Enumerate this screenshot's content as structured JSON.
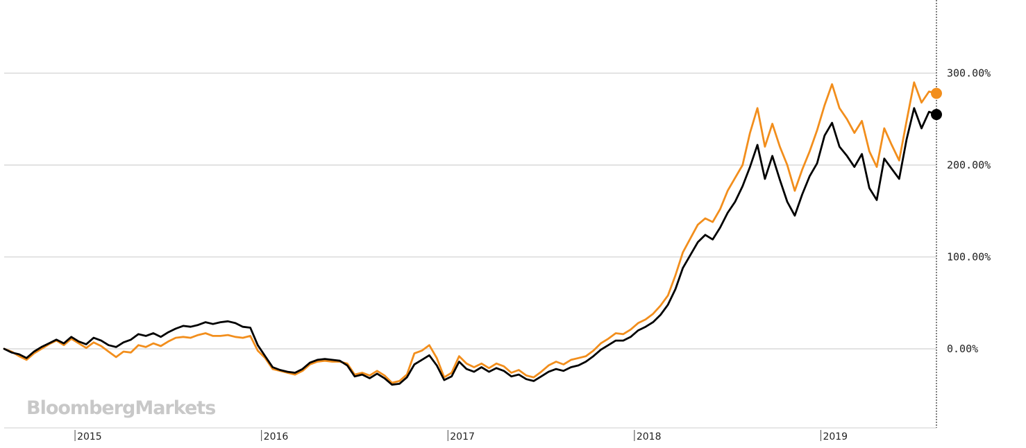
{
  "watermark": "BloombergMarkets",
  "chart_data": {
    "type": "line",
    "y_unit": "%",
    "ylim": [
      -85,
      370
    ],
    "xlim": [
      2014.62,
      2019.62
    ],
    "y_ticks": [
      {
        "value": 0,
        "label": "0.00%"
      },
      {
        "value": 100,
        "label": "100.00%"
      },
      {
        "value": 200,
        "label": "200.00%"
      },
      {
        "value": 300,
        "label": "300.00%"
      }
    ],
    "x_ticks": [
      {
        "value": 2015,
        "label": "2015"
      },
      {
        "value": 2016,
        "label": "2016"
      },
      {
        "value": 2017,
        "label": "2017"
      },
      {
        "value": 2018,
        "label": "2018"
      },
      {
        "value": 2019,
        "label": "2019"
      }
    ],
    "grid": true,
    "colors": {
      "orange": "#f28e1c",
      "black": "#000000",
      "grid": "#d9d9d9"
    },
    "series": [
      {
        "color": "#f28e1c",
        "points": [
          [
            2014.62,
            0
          ],
          [
            2014.66,
            -3
          ],
          [
            2014.7,
            -8
          ],
          [
            2014.74,
            -12
          ],
          [
            2014.78,
            -5
          ],
          [
            2014.82,
            0
          ],
          [
            2014.86,
            5
          ],
          [
            2014.9,
            9
          ],
          [
            2014.94,
            4
          ],
          [
            2014.98,
            11
          ],
          [
            2015.02,
            6
          ],
          [
            2015.06,
            1
          ],
          [
            2015.1,
            7
          ],
          [
            2015.14,
            3
          ],
          [
            2015.18,
            -3
          ],
          [
            2015.22,
            -9
          ],
          [
            2015.26,
            -3
          ],
          [
            2015.3,
            -4
          ],
          [
            2015.34,
            4
          ],
          [
            2015.38,
            2
          ],
          [
            2015.42,
            6
          ],
          [
            2015.46,
            3
          ],
          [
            2015.5,
            8
          ],
          [
            2015.54,
            12
          ],
          [
            2015.58,
            13
          ],
          [
            2015.62,
            12
          ],
          [
            2015.66,
            15
          ],
          [
            2015.7,
            17
          ],
          [
            2015.74,
            14
          ],
          [
            2015.78,
            14
          ],
          [
            2015.82,
            15
          ],
          [
            2015.86,
            13
          ],
          [
            2015.9,
            12
          ],
          [
            2015.94,
            14
          ],
          [
            2015.98,
            -2
          ],
          [
            2016.02,
            -10
          ],
          [
            2016.06,
            -22
          ],
          [
            2016.1,
            -24
          ],
          [
            2016.14,
            -26
          ],
          [
            2016.18,
            -28
          ],
          [
            2016.22,
            -24
          ],
          [
            2016.26,
            -17
          ],
          [
            2016.3,
            -14
          ],
          [
            2016.34,
            -13
          ],
          [
            2016.38,
            -14
          ],
          [
            2016.42,
            -14
          ],
          [
            2016.46,
            -16
          ],
          [
            2016.5,
            -28
          ],
          [
            2016.54,
            -26
          ],
          [
            2016.58,
            -29
          ],
          [
            2016.62,
            -24
          ],
          [
            2016.66,
            -29
          ],
          [
            2016.7,
            -37
          ],
          [
            2016.74,
            -35
          ],
          [
            2016.78,
            -28
          ],
          [
            2016.82,
            -5
          ],
          [
            2016.86,
            -2
          ],
          [
            2016.9,
            4
          ],
          [
            2016.94,
            -10
          ],
          [
            2016.98,
            -31
          ],
          [
            2017.02,
            -26
          ],
          [
            2017.06,
            -8
          ],
          [
            2017.1,
            -16
          ],
          [
            2017.14,
            -20
          ],
          [
            2017.18,
            -16
          ],
          [
            2017.22,
            -21
          ],
          [
            2017.26,
            -16
          ],
          [
            2017.3,
            -19
          ],
          [
            2017.34,
            -26
          ],
          [
            2017.38,
            -23
          ],
          [
            2017.42,
            -29
          ],
          [
            2017.46,
            -31
          ],
          [
            2017.5,
            -25
          ],
          [
            2017.54,
            -18
          ],
          [
            2017.58,
            -14
          ],
          [
            2017.62,
            -17
          ],
          [
            2017.66,
            -12
          ],
          [
            2017.7,
            -10
          ],
          [
            2017.74,
            -8
          ],
          [
            2017.78,
            -2
          ],
          [
            2017.82,
            6
          ],
          [
            2017.86,
            11
          ],
          [
            2017.9,
            17
          ],
          [
            2017.94,
            16
          ],
          [
            2017.98,
            21
          ],
          [
            2018.02,
            28
          ],
          [
            2018.06,
            32
          ],
          [
            2018.1,
            38
          ],
          [
            2018.14,
            47
          ],
          [
            2018.18,
            58
          ],
          [
            2018.22,
            80
          ],
          [
            2018.26,
            105
          ],
          [
            2018.3,
            120
          ],
          [
            2018.34,
            135
          ],
          [
            2018.38,
            142
          ],
          [
            2018.42,
            138
          ],
          [
            2018.46,
            152
          ],
          [
            2018.5,
            172
          ],
          [
            2018.54,
            186
          ],
          [
            2018.58,
            200
          ],
          [
            2018.62,
            235
          ],
          [
            2018.66,
            262
          ],
          [
            2018.7,
            220
          ],
          [
            2018.74,
            245
          ],
          [
            2018.78,
            220
          ],
          [
            2018.82,
            200
          ],
          [
            2018.86,
            172
          ],
          [
            2018.9,
            195
          ],
          [
            2018.94,
            215
          ],
          [
            2018.98,
            238
          ],
          [
            2019.02,
            265
          ],
          [
            2019.06,
            288
          ],
          [
            2019.1,
            262
          ],
          [
            2019.14,
            250
          ],
          [
            2019.18,
            235
          ],
          [
            2019.22,
            248
          ],
          [
            2019.26,
            215
          ],
          [
            2019.3,
            198
          ],
          [
            2019.34,
            240
          ],
          [
            2019.38,
            222
          ],
          [
            2019.42,
            205
          ],
          [
            2019.46,
            248
          ],
          [
            2019.5,
            290
          ],
          [
            2019.54,
            268
          ],
          [
            2019.58,
            280
          ],
          [
            2019.62,
            278
          ]
        ]
      },
      {
        "color": "#000000",
        "points": [
          [
            2014.62,
            0
          ],
          [
            2014.66,
            -4
          ],
          [
            2014.7,
            -6
          ],
          [
            2014.74,
            -10
          ],
          [
            2014.78,
            -3
          ],
          [
            2014.82,
            2
          ],
          [
            2014.86,
            6
          ],
          [
            2014.9,
            10
          ],
          [
            2014.94,
            6
          ],
          [
            2014.98,
            13
          ],
          [
            2015.02,
            8
          ],
          [
            2015.06,
            5
          ],
          [
            2015.1,
            12
          ],
          [
            2015.14,
            9
          ],
          [
            2015.18,
            4
          ],
          [
            2015.22,
            2
          ],
          [
            2015.26,
            7
          ],
          [
            2015.3,
            10
          ],
          [
            2015.34,
            16
          ],
          [
            2015.38,
            14
          ],
          [
            2015.42,
            17
          ],
          [
            2015.46,
            13
          ],
          [
            2015.5,
            18
          ],
          [
            2015.54,
            22
          ],
          [
            2015.58,
            25
          ],
          [
            2015.62,
            24
          ],
          [
            2015.66,
            26
          ],
          [
            2015.7,
            29
          ],
          [
            2015.74,
            27
          ],
          [
            2015.78,
            29
          ],
          [
            2015.82,
            30
          ],
          [
            2015.86,
            28
          ],
          [
            2015.9,
            24
          ],
          [
            2015.94,
            23
          ],
          [
            2015.98,
            4
          ],
          [
            2016.02,
            -8
          ],
          [
            2016.06,
            -20
          ],
          [
            2016.1,
            -23
          ],
          [
            2016.14,
            -25
          ],
          [
            2016.18,
            -26
          ],
          [
            2016.22,
            -22
          ],
          [
            2016.26,
            -15
          ],
          [
            2016.3,
            -12
          ],
          [
            2016.34,
            -11
          ],
          [
            2016.38,
            -12
          ],
          [
            2016.42,
            -13
          ],
          [
            2016.46,
            -18
          ],
          [
            2016.5,
            -30
          ],
          [
            2016.54,
            -28
          ],
          [
            2016.58,
            -32
          ],
          [
            2016.62,
            -27
          ],
          [
            2016.66,
            -32
          ],
          [
            2016.7,
            -39
          ],
          [
            2016.74,
            -38
          ],
          [
            2016.78,
            -31
          ],
          [
            2016.82,
            -17
          ],
          [
            2016.86,
            -12
          ],
          [
            2016.9,
            -7
          ],
          [
            2016.94,
            -18
          ],
          [
            2016.98,
            -34
          ],
          [
            2017.02,
            -30
          ],
          [
            2017.06,
            -14
          ],
          [
            2017.1,
            -22
          ],
          [
            2017.14,
            -25
          ],
          [
            2017.18,
            -20
          ],
          [
            2017.22,
            -25
          ],
          [
            2017.26,
            -21
          ],
          [
            2017.3,
            -24
          ],
          [
            2017.34,
            -30
          ],
          [
            2017.38,
            -28
          ],
          [
            2017.42,
            -33
          ],
          [
            2017.46,
            -35
          ],
          [
            2017.5,
            -30
          ],
          [
            2017.54,
            -25
          ],
          [
            2017.58,
            -22
          ],
          [
            2017.62,
            -24
          ],
          [
            2017.66,
            -20
          ],
          [
            2017.7,
            -18
          ],
          [
            2017.74,
            -14
          ],
          [
            2017.78,
            -8
          ],
          [
            2017.82,
            -1
          ],
          [
            2017.86,
            4
          ],
          [
            2017.9,
            9
          ],
          [
            2017.94,
            9
          ],
          [
            2017.98,
            13
          ],
          [
            2018.02,
            20
          ],
          [
            2018.06,
            24
          ],
          [
            2018.1,
            29
          ],
          [
            2018.14,
            37
          ],
          [
            2018.18,
            48
          ],
          [
            2018.22,
            65
          ],
          [
            2018.26,
            88
          ],
          [
            2018.3,
            102
          ],
          [
            2018.34,
            116
          ],
          [
            2018.38,
            124
          ],
          [
            2018.42,
            119
          ],
          [
            2018.46,
            132
          ],
          [
            2018.5,
            148
          ],
          [
            2018.54,
            160
          ],
          [
            2018.58,
            177
          ],
          [
            2018.62,
            198
          ],
          [
            2018.66,
            222
          ],
          [
            2018.7,
            185
          ],
          [
            2018.74,
            210
          ],
          [
            2018.78,
            184
          ],
          [
            2018.82,
            160
          ],
          [
            2018.86,
            145
          ],
          [
            2018.9,
            168
          ],
          [
            2018.94,
            188
          ],
          [
            2018.98,
            202
          ],
          [
            2019.02,
            232
          ],
          [
            2019.06,
            246
          ],
          [
            2019.1,
            220
          ],
          [
            2019.14,
            210
          ],
          [
            2019.18,
            198
          ],
          [
            2019.22,
            212
          ],
          [
            2019.26,
            175
          ],
          [
            2019.3,
            162
          ],
          [
            2019.34,
            207
          ],
          [
            2019.38,
            196
          ],
          [
            2019.42,
            185
          ],
          [
            2019.46,
            228
          ],
          [
            2019.5,
            262
          ],
          [
            2019.54,
            240
          ],
          [
            2019.58,
            258
          ],
          [
            2019.62,
            255
          ]
        ]
      }
    ]
  }
}
